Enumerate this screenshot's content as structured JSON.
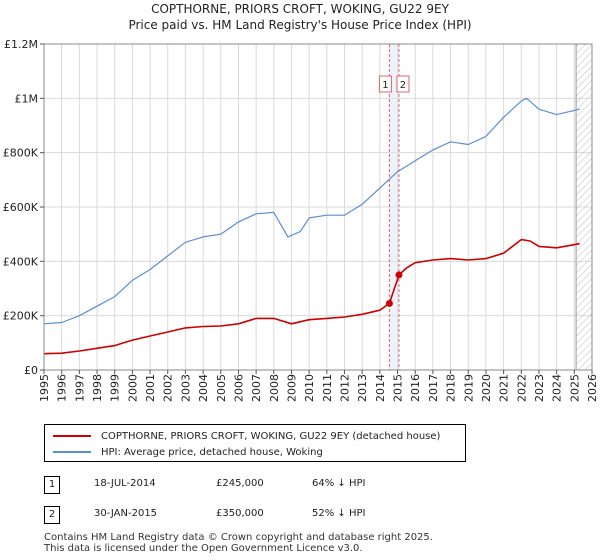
{
  "title": "COPTHORNE, PRIORS CROFT, WOKING, GU22 9EY",
  "subtitle": "Price paid vs. HM Land Registry's House Price Index (HPI)",
  "colors": {
    "property": "#cc0000",
    "hpi": "#5b8fd1",
    "marker": "#cc0000",
    "vline": "#e06666"
  },
  "chart_data": {
    "type": "line",
    "x_ticks": [
      1995,
      1996,
      1997,
      1998,
      1999,
      2000,
      2001,
      2002,
      2003,
      2004,
      2005,
      2006,
      2007,
      2008,
      2009,
      2010,
      2011,
      2012,
      2013,
      2014,
      2015,
      2016,
      2017,
      2018,
      2019,
      2020,
      2021,
      2022,
      2023,
      2024,
      2025,
      2026
    ],
    "x_tick_labels": [
      "1995",
      "1996",
      "1997",
      "1998",
      "1999",
      "2000",
      "2001",
      "2002",
      "2003",
      "2004",
      "2005",
      "2006",
      "2007",
      "2008",
      "2009",
      "2010",
      "2011",
      "2012",
      "2013",
      "2014",
      "2015",
      "2016",
      "2017",
      "2018",
      "2019",
      "2020",
      "2021",
      "2022",
      "2023",
      "2024",
      "2025",
      "2026"
    ],
    "y_ticks": [
      0,
      200000,
      400000,
      600000,
      800000,
      1000000,
      1200000
    ],
    "y_tick_labels": [
      "£0",
      "£200K",
      "£400K",
      "£600K",
      "£800K",
      "£1M",
      "£1.2M"
    ],
    "xlim": [
      1995,
      2026
    ],
    "ylim": [
      0,
      1200000
    ],
    "grid": true,
    "hatched_after": 2025.1,
    "series": [
      {
        "name": "COPTHORNE, PRIORS CROFT, WOKING, GU22 9EY (detached house)",
        "x": [
          1995,
          1996,
          1997,
          1998,
          1999,
          2000,
          2001,
          2002,
          2003,
          2004,
          2005,
          2006,
          2007,
          2008,
          2009,
          2010,
          2011,
          2012,
          2013,
          2014,
          2014.54,
          2015.08,
          2015.5,
          2016,
          2017,
          2018,
          2019,
          2020,
          2021,
          2022,
          2022.5,
          2023,
          2024,
          2025.3
        ],
        "y": [
          60000,
          62000,
          70000,
          80000,
          90000,
          110000,
          125000,
          140000,
          155000,
          160000,
          162000,
          170000,
          190000,
          190000,
          170000,
          185000,
          190000,
          195000,
          205000,
          220000,
          245000,
          350000,
          375000,
          395000,
          405000,
          410000,
          405000,
          410000,
          430000,
          480000,
          475000,
          455000,
          450000,
          465000
        ]
      },
      {
        "name": "HPI: Average price, detached house, Woking",
        "x": [
          1995,
          1996,
          1997,
          1998,
          1999,
          2000,
          2001,
          2002,
          2003,
          2004,
          2005,
          2006,
          2007,
          2008,
          2008.8,
          2009.5,
          2010,
          2011,
          2012,
          2013,
          2014,
          2015,
          2016,
          2017,
          2018,
          2019,
          2020,
          2021,
          2022,
          2022.3,
          2023,
          2024,
          2025.3
        ],
        "y": [
          170000,
          175000,
          200000,
          235000,
          270000,
          330000,
          370000,
          420000,
          470000,
          490000,
          500000,
          545000,
          575000,
          580000,
          490000,
          510000,
          560000,
          570000,
          570000,
          610000,
          670000,
          730000,
          770000,
          810000,
          840000,
          830000,
          860000,
          930000,
          990000,
          1000000,
          960000,
          940000,
          960000
        ]
      }
    ],
    "annotations": [
      {
        "label": "1",
        "x": 2014.54,
        "y": 245000
      },
      {
        "label": "2",
        "x": 2015.08,
        "y": 350000
      }
    ]
  },
  "legend": {
    "property_label": "COPTHORNE, PRIORS CROFT, WOKING, GU22 9EY (detached house)",
    "hpi_label": "HPI: Average price, detached house, Woking"
  },
  "transactions": [
    {
      "num": "1",
      "date": "18-JUL-2014",
      "price": "£245,000",
      "delta": "64% ↓ HPI"
    },
    {
      "num": "2",
      "date": "30-JAN-2015",
      "price": "£350,000",
      "delta": "52% ↓ HPI"
    }
  ],
  "footer": {
    "line1": "Contains HM Land Registry data © Crown copyright and database right 2025.",
    "line2": "This data is licensed under the Open Government Licence v3.0."
  }
}
